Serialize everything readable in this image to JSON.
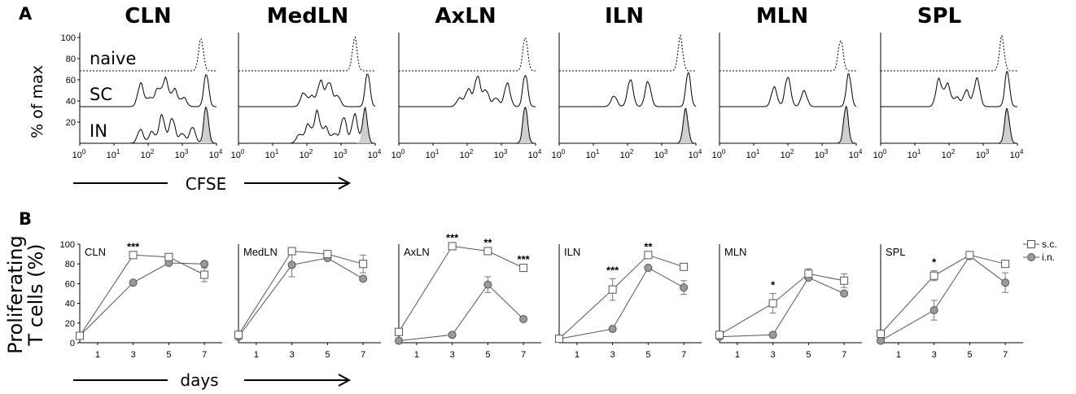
{
  "panel_labels": {
    "a": "A",
    "b": "B"
  },
  "chart_data": [
    {
      "type": "histogram",
      "panel": "A",
      "ylabel": "% of max",
      "xlabel": "CFSE",
      "x_scale": "log",
      "xlim": [
        1,
        10000
      ],
      "x_tick_labels": [
        "10",
        "10",
        "10",
        "10",
        "10"
      ],
      "x_tick_exponents": [
        "0",
        "1",
        "2",
        "3",
        "4"
      ],
      "y_tick_labels": [
        "20",
        "40",
        "60",
        "80",
        "100"
      ],
      "row_labels": [
        "naive",
        "SC",
        "IN"
      ],
      "columns": [
        "CLN",
        "MedLN",
        "AxLN",
        "ILN",
        "MLN",
        "SPL"
      ],
      "profile_peaks": {
        "naive": {
          "CLN": [
            3500
          ],
          "MedLN": [
            2500
          ],
          "AxLN": [
            5000
          ],
          "ILN": [
            3500
          ],
          "MLN": [
            3500
          ],
          "SPL": [
            3500
          ]
        },
        "SC": {
          "CLN": [
            60,
            110,
            190,
            320,
            600,
            1100,
            5000
          ],
          "MedLN": [
            80,
            140,
            250,
            450,
            800,
            6000
          ],
          "AxLN": [
            60,
            110,
            200,
            350,
            700,
            1500,
            5000
          ],
          "ILN": [
            40,
            120,
            400,
            6000
          ],
          "MLN": [
            40,
            100,
            300,
            6000
          ],
          "SPL": [
            50,
            90,
            170,
            320,
            650,
            5000
          ]
        },
        "IN": {
          "CLN": [
            60,
            130,
            250,
            500,
            1000,
            2000,
            5000
          ],
          "MedLN": [
            60,
            110,
            200,
            350,
            650,
            1200,
            2500,
            5000
          ],
          "AxLN": [
            5000
          ],
          "ILN": [
            5000
          ],
          "MLN": [
            5000
          ],
          "SPL": [
            5000
          ]
        }
      }
    },
    {
      "type": "line",
      "panel": "B",
      "ylabel": "Proliferating\nT cells (%)",
      "xlabel": "days",
      "x": [
        0,
        3,
        5,
        7
      ],
      "x_ticks": [
        "1",
        "3",
        "5",
        "7"
      ],
      "y_ticks": [
        "0",
        "20",
        "40",
        "60",
        "80",
        "100"
      ],
      "ylim": [
        0,
        100
      ],
      "xlim": [
        0,
        8
      ],
      "legend": {
        "position": "right",
        "entries": [
          "s.c.",
          "i.n."
        ]
      },
      "panels": [
        {
          "name": "CLN",
          "sc": [
            7,
            89,
            87,
            69
          ],
          "in": [
            7,
            61,
            81,
            80
          ],
          "sc_err": [
            0,
            0,
            0,
            7
          ],
          "in_err": [
            0,
            0,
            0,
            0
          ],
          "sig": [
            "",
            "***",
            "",
            ""
          ]
        },
        {
          "name": "MedLN",
          "sc": [
            8,
            93,
            90,
            80
          ],
          "in": [
            6,
            79,
            86,
            65
          ],
          "sc_err": [
            0,
            0,
            0,
            9
          ],
          "in_err": [
            0,
            12,
            0,
            0
          ],
          "sig": [
            "",
            "",
            "",
            ""
          ]
        },
        {
          "name": "AxLN",
          "sc": [
            11,
            98,
            93,
            76
          ],
          "in": [
            2,
            8,
            59,
            24
          ],
          "sc_err": [
            0,
            0,
            0,
            0
          ],
          "in_err": [
            0,
            0,
            8,
            0
          ],
          "sig": [
            "",
            "***",
            "**",
            "***"
          ]
        },
        {
          "name": "ILN",
          "sc": [
            4,
            54,
            89,
            77
          ],
          "in": [
            4,
            14,
            76,
            56
          ],
          "sc_err": [
            0,
            11,
            0,
            0
          ],
          "in_err": [
            0,
            0,
            0,
            7
          ],
          "sig": [
            "",
            "***",
            "**",
            ""
          ]
        },
        {
          "name": "MLN",
          "sc": [
            8,
            40,
            70,
            63
          ],
          "in": [
            6,
            8,
            66,
            50
          ],
          "sc_err": [
            0,
            10,
            5,
            7
          ],
          "in_err": [
            0,
            0,
            0,
            0
          ],
          "sig": [
            "",
            "*",
            "",
            ""
          ]
        },
        {
          "name": "SPL",
          "sc": [
            9,
            68,
            89,
            80
          ],
          "in": [
            2,
            33,
            88,
            61
          ],
          "sc_err": [
            0,
            5,
            0,
            0
          ],
          "in_err": [
            0,
            10,
            0,
            10
          ],
          "sig": [
            "",
            "*",
            "",
            ""
          ]
        }
      ]
    }
  ]
}
